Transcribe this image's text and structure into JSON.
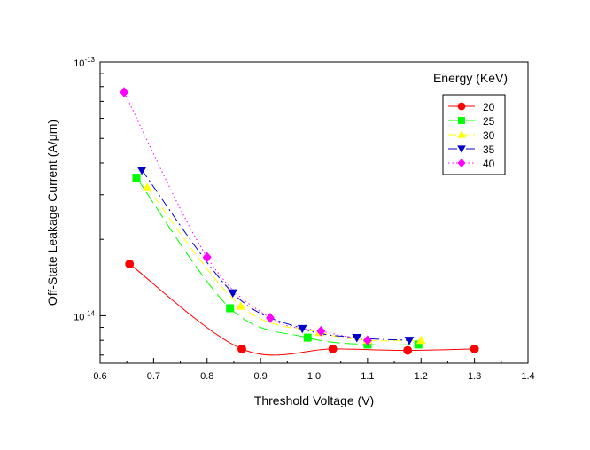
{
  "chart_data": {
    "type": "line",
    "xlabel": "Threshold Voltage (V)",
    "ylabel": "Off-State Leakage Current (A/μm)",
    "xlim": [
      0.6,
      1.4
    ],
    "ylim": [
      6.5e-15,
      1e-13
    ],
    "yscale": "log",
    "x_ticks": [
      0.6,
      0.7,
      0.8,
      0.9,
      1.0,
      1.1,
      1.2,
      1.3,
      1.4
    ],
    "x_tick_labels": [
      "0.6",
      "0.7",
      "0.8",
      "0.9",
      "1.0",
      "1.1",
      "1.2",
      "1.3",
      "1.4"
    ],
    "y_ticks": [
      1e-14,
      1e-13
    ],
    "y_tick_labels": [
      {
        "base": "10",
        "exp": "-14"
      },
      {
        "base": "10",
        "exp": "-13"
      }
    ],
    "grid": false,
    "legend": {
      "title": "Energy (KeV)",
      "placement": "top-right"
    },
    "series": [
      {
        "name": "20",
        "color": "#ff0000",
        "marker": "circle",
        "line": "solid",
        "x": [
          0.655,
          0.865,
          1.035,
          1.175,
          1.3
        ],
        "y": [
          1.6e-14,
          7.4e-15,
          7.4e-15,
          7.3e-15,
          7.4e-15
        ]
      },
      {
        "name": "25",
        "color": "#00ff00",
        "marker": "square",
        "line": "long-dash",
        "x": [
          0.668,
          0.843,
          0.988,
          1.1,
          1.195
        ],
        "y": [
          3.5e-14,
          1.07e-14,
          8.2e-15,
          7.7e-15,
          7.7e-15
        ]
      },
      {
        "name": "30",
        "color": "#ffff00",
        "marker": "triangle-up",
        "line": "dash",
        "x": [
          0.688,
          0.863,
          1.01,
          1.1,
          1.2
        ],
        "y": [
          3.2e-14,
          1.09e-14,
          8.6e-15,
          8e-15,
          8e-15
        ]
      },
      {
        "name": "35",
        "color": "#0000cc",
        "marker": "triangle-down",
        "line": "dash-dot",
        "x": [
          0.678,
          0.848,
          0.978,
          1.08,
          1.178
        ],
        "y": [
          3.75e-14,
          1.23e-14,
          8.9e-15,
          8.2e-15,
          8e-15
        ]
      },
      {
        "name": "40",
        "color": "#ff00ff",
        "marker": "diamond",
        "line": "dotted",
        "x": [
          0.645,
          0.8,
          0.918,
          1.013,
          1.1
        ],
        "y": [
          7.6e-14,
          1.7e-14,
          9.8e-15,
          8.7e-15,
          8e-15
        ]
      }
    ]
  }
}
